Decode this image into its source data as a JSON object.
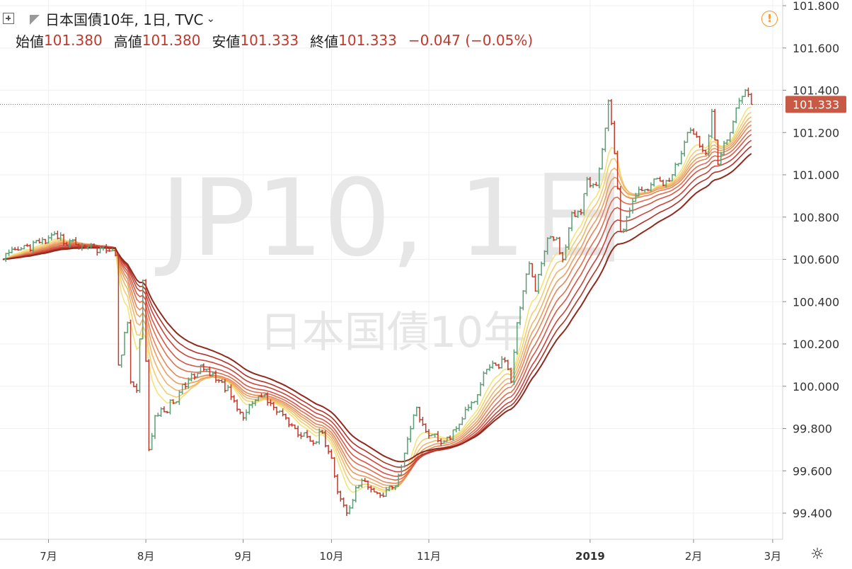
{
  "header": {
    "title": "日本国債10年, 1日, TVC",
    "ohlc": [
      {
        "label": "始値",
        "value": "101.380"
      },
      {
        "label": "高値",
        "value": "101.380"
      },
      {
        "label": "安値",
        "value": "101.333"
      },
      {
        "label": "終値",
        "value": "101.333"
      }
    ],
    "change": "−0.047 (−0.05%)"
  },
  "watermark": {
    "main": "JP10, 1日",
    "sub": "日本国債10年"
  },
  "colors": {
    "up": "#5a9e75",
    "down": "#c0392b",
    "price_tag": "#c85a45",
    "ribbon": [
      "#f4e37a",
      "#f2cd74",
      "#efb56b",
      "#eb9e62",
      "#e68658",
      "#df6e4f",
      "#d65746",
      "#c9443c",
      "#b13428",
      "#8f2a1d"
    ]
  },
  "chart_data": {
    "type": "candlestick",
    "title": "日本国債10年, 1日, TVC",
    "ylim": [
      99.3,
      101.85
    ],
    "yticks": [
      "101.800",
      "101.600",
      "101.400",
      "101.200",
      "101.000",
      "100.800",
      "100.600",
      "100.400",
      "100.200",
      "100.000",
      "99.800",
      "99.600",
      "99.400"
    ],
    "xlim": [
      0,
      254
    ],
    "xticks": [
      {
        "label": "7月",
        "x": 15,
        "bold": false
      },
      {
        "label": "8月",
        "x": 47,
        "bold": false
      },
      {
        "label": "9月",
        "x": 79,
        "bold": false
      },
      {
        "label": "10月",
        "x": 108,
        "bold": false
      },
      {
        "label": "11月",
        "x": 140,
        "bold": false
      },
      {
        "label": "2019",
        "x": 193,
        "bold": true
      },
      {
        "label": "2月",
        "x": 227,
        "bold": false
      },
      {
        "label": "3月",
        "x": 253,
        "bold": false
      }
    ],
    "current_price": "101.333",
    "ribbon_mas": "10 moving averages (short-period yellow to long-period dark red)",
    "anchors": [
      [
        0,
        100.6
      ],
      [
        6,
        100.65
      ],
      [
        12,
        100.68
      ],
      [
        18,
        100.7
      ],
      [
        24,
        100.67
      ],
      [
        30,
        100.66
      ],
      [
        35,
        100.64
      ],
      [
        37,
        100.62
      ],
      [
        38,
        100.1
      ],
      [
        41,
        100.3
      ],
      [
        42,
        100.02
      ],
      [
        44,
        99.98
      ],
      [
        46,
        100.5
      ],
      [
        48,
        99.7
      ],
      [
        50,
        99.86
      ],
      [
        56,
        99.92
      ],
      [
        61,
        100.03
      ],
      [
        65,
        100.1
      ],
      [
        68,
        100.05
      ],
      [
        72,
        100.02
      ],
      [
        75,
        99.95
      ],
      [
        79,
        99.85
      ],
      [
        82,
        99.92
      ],
      [
        85,
        99.95
      ],
      [
        89,
        99.9
      ],
      [
        93,
        99.85
      ],
      [
        96,
        99.8
      ],
      [
        99,
        99.78
      ],
      [
        102,
        99.73
      ],
      [
        105,
        99.78
      ],
      [
        108,
        99.66
      ],
      [
        110,
        99.5
      ],
      [
        113,
        99.4
      ],
      [
        116,
        99.52
      ],
      [
        119,
        99.55
      ],
      [
        122,
        99.5
      ],
      [
        125,
        99.48
      ],
      [
        128,
        99.52
      ],
      [
        130,
        99.58
      ],
      [
        133,
        99.75
      ],
      [
        136,
        99.9
      ],
      [
        138,
        99.82
      ],
      [
        141,
        99.77
      ],
      [
        144,
        99.73
      ],
      [
        147,
        99.75
      ],
      [
        150,
        99.82
      ],
      [
        153,
        99.9
      ],
      [
        156,
        99.96
      ],
      [
        159,
        100.08
      ],
      [
        162,
        100.1
      ],
      [
        165,
        100.12
      ],
      [
        167,
        100.02
      ],
      [
        169,
        100.3
      ],
      [
        171,
        100.45
      ],
      [
        173,
        100.58
      ],
      [
        175,
        100.45
      ],
      [
        177,
        100.58
      ],
      [
        179,
        100.7
      ],
      [
        182,
        100.7
      ],
      [
        184,
        100.6
      ],
      [
        187,
        100.82
      ],
      [
        190,
        100.82
      ],
      [
        192,
        100.98
      ],
      [
        195,
        100.95
      ],
      [
        197,
        101.12
      ],
      [
        199,
        101.35
      ],
      [
        201,
        101.1
      ],
      [
        203,
        100.73
      ],
      [
        205,
        100.8
      ],
      [
        208,
        100.9
      ],
      [
        211,
        100.93
      ],
      [
        214,
        100.98
      ],
      [
        217,
        100.95
      ],
      [
        220,
        101.0
      ],
      [
        223,
        101.1
      ],
      [
        225,
        101.2
      ],
      [
        228,
        101.18
      ],
      [
        231,
        101.1
      ],
      [
        233,
        101.3
      ],
      [
        235,
        101.05
      ],
      [
        237,
        101.15
      ],
      [
        239,
        101.2
      ],
      [
        242,
        101.35
      ],
      [
        244,
        101.4
      ],
      [
        245,
        101.38
      ],
      [
        246,
        101.333
      ]
    ]
  }
}
